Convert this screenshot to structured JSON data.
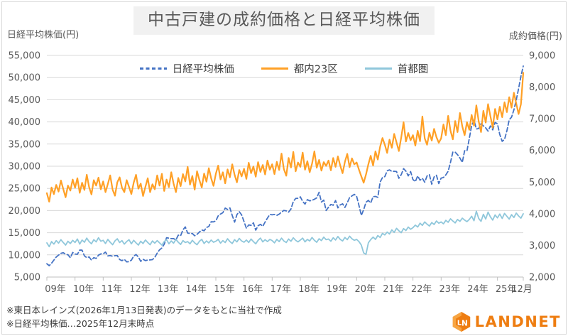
{
  "title": "中古戸建の成約価格と日経平均株価",
  "left_axis_title": "日経平均株価(円)",
  "right_axis_title": "成約価格(円)",
  "legend": [
    {
      "label": "日経平均株価",
      "color": "#4472C4",
      "style": "dashed"
    },
    {
      "label": "都内23区",
      "color": "#FFA026",
      "style": "solid"
    },
    {
      "label": "首都圏",
      "color": "#8FC7DB",
      "style": "solid"
    }
  ],
  "notes": [
    "※東日本レインズ(2026年1月13日発表)のデータをもとに当社で作成",
    "※日経平均株価…2025年12月末時点"
  ],
  "logo": {
    "text": "LANDNET",
    "icon_text": "LN",
    "color": "#ee7d11"
  },
  "chart_data": {
    "type": "line",
    "title": "中古戸建の成約価格と日経平均株価",
    "x_unit": "month",
    "grid": true,
    "legend_position": "top",
    "x_tick_labels": [
      "09年",
      "10年",
      "11年",
      "12年",
      "13年",
      "14年",
      "15年",
      "16年",
      "17年",
      "18年",
      "19年",
      "20年",
      "21年",
      "22年",
      "23年",
      "24年",
      "25年",
      "12月"
    ],
    "left_axis": {
      "min": 5000,
      "max": 55000,
      "step": 5000,
      "values": [
        55000,
        50000,
        45000,
        40000,
        35000,
        30000,
        25000,
        20000,
        15000,
        10000,
        5000
      ],
      "tick_labels": [
        "55,000",
        "50,000",
        "45,000",
        "40,000",
        "35,000",
        "30,000",
        "25,000",
        "20,000",
        "15,000",
        "10,000",
        "5,000"
      ]
    },
    "right_axis": {
      "min": 2000,
      "max": 9000,
      "step": 1000,
      "values": [
        9000,
        8000,
        7000,
        6000,
        5000,
        4000,
        3000,
        2000
      ],
      "tick_labels": [
        "9,000",
        "8,000",
        "7,000",
        "6,000",
        "5,000",
        "4,000",
        "3,000",
        "2,000"
      ]
    },
    "series": [
      {
        "name": "日経平均株価",
        "axis": "left",
        "color": "#4472C4",
        "dash": true,
        "values": [
          7994,
          7568,
          8110,
          8828,
          9523,
          9958,
          10357,
          10493,
          10133,
          10035,
          9346,
          10546,
          10198,
          10126,
          11090,
          11057,
          9769,
          9383,
          9537,
          8824,
          9369,
          9202,
          9937,
          10229,
          10237,
          10624,
          9755,
          9850,
          9694,
          9816,
          9833,
          8955,
          8700,
          8988,
          8435,
          8455,
          8803,
          9723,
          10084,
          9521,
          8543,
          9007,
          8695,
          8840,
          8870,
          8928,
          9446,
          10395,
          11139,
          11559,
          12398,
          13861,
          13775,
          13677,
          13668,
          13389,
          14456,
          14328,
          15662,
          16291,
          14915,
          14841,
          14828,
          14304,
          14632,
          15162,
          15621,
          15425,
          16174,
          16414,
          17460,
          17451,
          17674,
          18798,
          19207,
          19520,
          20563,
          20236,
          20585,
          18890,
          17388,
          19083,
          19747,
          19034,
          17518,
          16027,
          16759,
          16666,
          17235,
          15576,
          16569,
          16887,
          16450,
          17425,
          18308,
          19114,
          19041,
          19119,
          18909,
          19197,
          19651,
          20033,
          19925,
          19646,
          20356,
          22012,
          22725,
          22765,
          23098,
          22068,
          21454,
          22468,
          22202,
          22305,
          22554,
          22865,
          24120,
          21920,
          22351,
          20015,
          20773,
          21385,
          21206,
          22259,
          20601,
          21276,
          21522,
          20704,
          21756,
          22927,
          23294,
          23657,
          23205,
          21143,
          18917,
          20194,
          21878,
          22288,
          21710,
          23140,
          23185,
          22977,
          26434,
          27444,
          27663,
          28966,
          29179,
          28813,
          28860,
          28792,
          27284,
          28090,
          29453,
          28893,
          27822,
          28792,
          27002,
          26527,
          27821,
          26848,
          27280,
          26393,
          27802,
          28092,
          25937,
          27587,
          27969,
          26095,
          27327,
          27446,
          28041,
          28856,
          30888,
          33189,
          33172,
          32619,
          31858,
          30859,
          33487,
          33464,
          36287,
          39166,
          40369,
          38406,
          38488,
          39583,
          39102,
          38648,
          37920,
          39081,
          38208,
          39895,
          39572,
          37156,
          35618,
          36045,
          37965,
          40487,
          41070,
          42718,
          44933,
          47500,
          50300,
          52600
        ]
      },
      {
        "name": "都内23区",
        "axis": "right",
        "color": "#FFA026",
        "dash": false,
        "values": [
          4650,
          4380,
          4830,
          4620,
          4910,
          4700,
          5050,
          4780,
          4520,
          4890,
          4730,
          5080,
          4820,
          5120,
          4660,
          4980,
          4750,
          5230,
          4840,
          4610,
          5060,
          4890,
          5140,
          4770,
          5020,
          4680,
          4940,
          5210,
          4760,
          4570,
          4990,
          5150,
          4820,
          4680,
          5060,
          4850,
          4620,
          4980,
          5230,
          4790,
          4950,
          4560,
          4850,
          5120,
          4680,
          4930,
          4770,
          5210,
          4890,
          5260,
          4720,
          5080,
          4840,
          5310,
          4950,
          4680,
          5130,
          4870,
          5250,
          5020,
          5480,
          4920,
          5190,
          4760,
          5340,
          5060,
          4830,
          5270,
          5010,
          5440,
          5120,
          4880,
          5260,
          5520,
          5080,
          5310,
          4960,
          5400,
          5150,
          5560,
          5230,
          4990,
          5380,
          5180,
          5420,
          5100,
          5610,
          5280,
          5490,
          5170,
          5630,
          5320,
          5540,
          5240,
          5680,
          5390,
          5560,
          5250,
          5640,
          5380,
          5900,
          5410,
          5200,
          5760,
          5460,
          5950,
          5340,
          5620,
          5480,
          5930,
          5390,
          5660,
          5310,
          5580,
          5970,
          5450,
          5700,
          5360,
          5630,
          5510,
          5680,
          5370,
          5760,
          5480,
          5810,
          5520,
          5280,
          5640,
          5890,
          5470,
          5750,
          5560,
          5620,
          5390,
          5180,
          4980,
          5240,
          5560,
          5830,
          5520,
          5970,
          5710,
          6120,
          6390,
          6180,
          5920,
          6340,
          6080,
          6520,
          6250,
          5980,
          6410,
          6890,
          6280,
          6550,
          6320,
          6480,
          6150,
          6620,
          6290,
          7070,
          6380,
          6180,
          6560,
          6310,
          6680,
          6420,
          6240,
          6380,
          6820,
          6480,
          7090,
          6620,
          6350,
          6930,
          6580,
          7180,
          6760,
          6480,
          6890,
          6650,
          7120,
          6780,
          7420,
          6920,
          6580,
          7250,
          6880,
          7460,
          7080,
          6720,
          7310,
          6980,
          7380,
          7050,
          7520,
          7210,
          7680,
          7350,
          7820,
          7480,
          7150,
          7460,
          8450
        ]
      },
      {
        "name": "首都圏",
        "axis": "right",
        "color": "#8FC7DB",
        "dash": false,
        "values": [
          3080,
          2960,
          3120,
          3040,
          3150,
          3070,
          3180,
          3090,
          3010,
          3130,
          3060,
          3160,
          3090,
          3200,
          3040,
          3170,
          3100,
          3230,
          3120,
          3050,
          3180,
          3110,
          3240,
          3130,
          3160,
          3060,
          3190,
          3100,
          3020,
          3140,
          3210,
          3090,
          3150,
          3040,
          3120,
          3180,
          3050,
          3160,
          3080,
          3010,
          3130,
          3060,
          3170,
          3090,
          3020,
          3140,
          3070,
          3150,
          3080,
          3010,
          3120,
          3180,
          3050,
          3140,
          3070,
          3190,
          3100,
          3030,
          3150,
          3090,
          3120,
          3050,
          3160,
          3080,
          3020,
          3130,
          3190,
          3060,
          3140,
          3080,
          3170,
          3100,
          3130,
          3190,
          3070,
          3150,
          3090,
          3210,
          3120,
          3060,
          3180,
          3110,
          3220,
          3140,
          3100,
          3170,
          3090,
          3200,
          3120,
          3050,
          3160,
          3230,
          3110,
          3180,
          3120,
          3190,
          3150,
          3080,
          3190,
          3120,
          3230,
          3140,
          3090,
          3200,
          3130,
          3240,
          3160,
          3110,
          3170,
          3230,
          3110,
          3190,
          3140,
          3250,
          3160,
          3100,
          3210,
          3150,
          3260,
          3180,
          3200,
          3130,
          3240,
          3170,
          3280,
          3190,
          3140,
          3250,
          3180,
          3290,
          3210,
          3160,
          3190,
          3120,
          3010,
          2760,
          2720,
          3080,
          3180,
          3260,
          3190,
          3310,
          3250,
          3380,
          3330,
          3420,
          3360,
          3490,
          3410,
          3540,
          3460,
          3400,
          3530,
          3470,
          3580,
          3510,
          3560,
          3640,
          3580,
          3700,
          3630,
          3740,
          3670,
          3610,
          3720,
          3660,
          3770,
          3700,
          3740,
          3680,
          3790,
          3730,
          3840,
          3770,
          3710,
          3820,
          3760,
          3860,
          3800,
          3750,
          3820,
          3920,
          3780,
          4080,
          3850,
          3760,
          3980,
          3830,
          4050,
          3900,
          3800,
          3960,
          3870,
          3990,
          3850,
          4010,
          3920,
          3830,
          3970,
          3880,
          4020,
          3930,
          3860,
          4000
        ]
      }
    ]
  }
}
